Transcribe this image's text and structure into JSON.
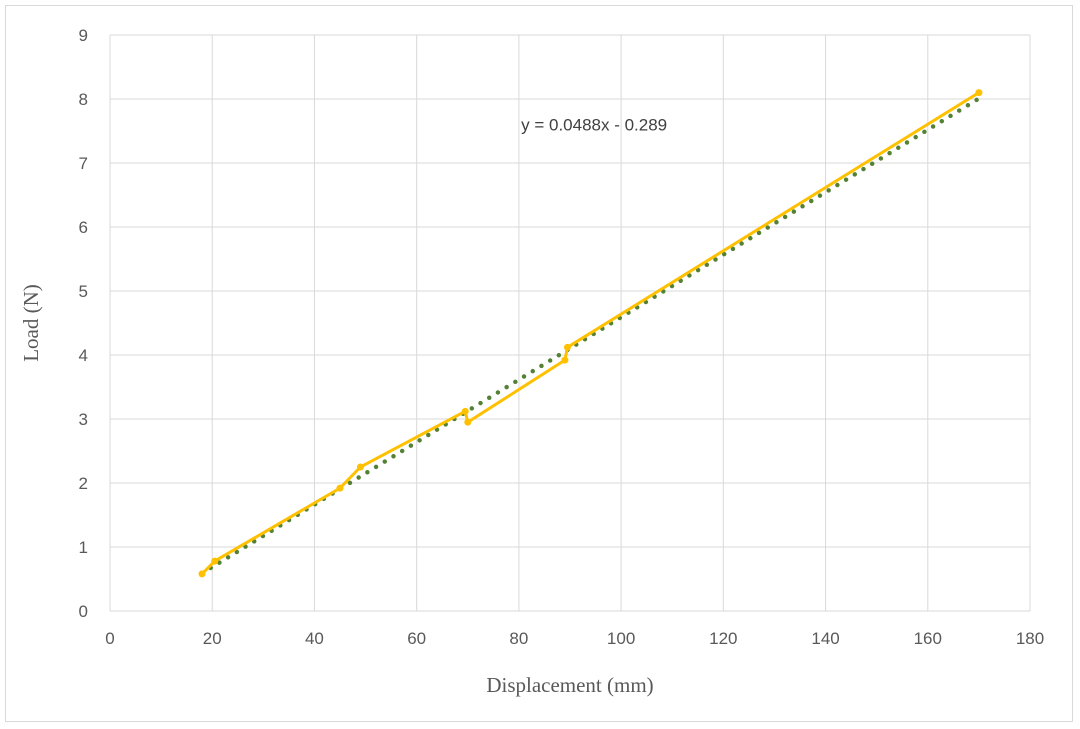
{
  "chart_data": {
    "type": "scatter",
    "xlabel": "Displacement (mm)",
    "ylabel": "Load (N)",
    "xlim": [
      0,
      180
    ],
    "ylim": [
      0,
      9
    ],
    "x_ticks": [
      0,
      20,
      40,
      60,
      80,
      100,
      120,
      140,
      160,
      180
    ],
    "y_ticks": [
      0,
      1,
      2,
      3,
      4,
      5,
      6,
      7,
      8,
      9
    ],
    "grid": true,
    "legend": "none",
    "series": [
      {
        "style": "line-with-markers",
        "color": "#ffc000",
        "points": [
          [
            18,
            0.58
          ],
          [
            20.5,
            0.78
          ],
          [
            45,
            1.92
          ],
          [
            49,
            2.25
          ],
          [
            69.5,
            3.12
          ],
          [
            70,
            2.95
          ],
          [
            89,
            3.92
          ],
          [
            89.5,
            4.12
          ],
          [
            170,
            8.1
          ]
        ]
      },
      {
        "style": "dotted-trendline",
        "color": "#548235",
        "slope": 0.0488,
        "intercept": -0.289,
        "x_range": [
          18,
          170
        ]
      }
    ],
    "annotations": [
      {
        "text": "y = 0.0488x - 0.289",
        "x": 100,
        "y": 7.6
      }
    ]
  }
}
